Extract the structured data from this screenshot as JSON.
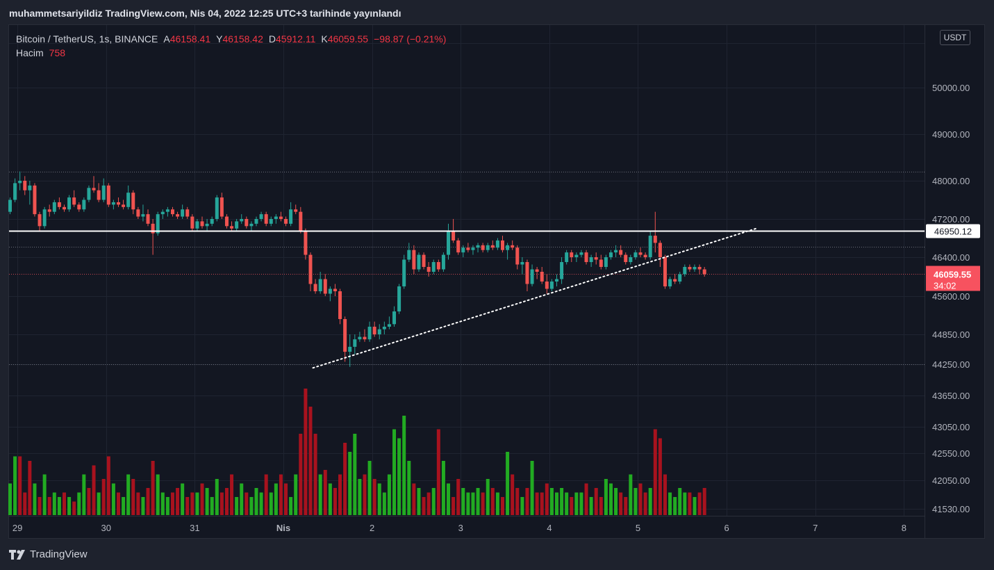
{
  "header": {
    "title": "muhammetsariyildiz TradingView.com, Nis 04, 2022 12:25 UTC+3 tarihinde yayınlandı"
  },
  "legend": {
    "symbol": "Bitcoin / TetherUS, 1s, BINANCE",
    "open_label": "A",
    "open": "46158.41",
    "high_label": "Y",
    "high": "46158.42",
    "low_label": "D",
    "low": "45912.11",
    "close_label": "K",
    "close": "46059.55",
    "change": "−98.87 (−0.21%)",
    "volume_label": "Hacim",
    "volume": "758"
  },
  "currency_button": "USDT",
  "branding": {
    "logo_text": "TradingView"
  },
  "chart_data": {
    "type": "candlestick",
    "price_axis_ticks": [
      {
        "value": 50000,
        "label": "50000.00"
      },
      {
        "value": 49000,
        "label": "49000.00"
      },
      {
        "value": 48000,
        "label": "48000.00"
      },
      {
        "value": 47200,
        "label": "47200.00"
      },
      {
        "value": 46400,
        "label": "46400.00"
      },
      {
        "value": 45600,
        "label": "45600.00"
      },
      {
        "value": 44850,
        "label": "44850.00"
      },
      {
        "value": 44250,
        "label": "44250.00"
      },
      {
        "value": 43650,
        "label": "43650.00"
      },
      {
        "value": 43050,
        "label": "43050.00"
      },
      {
        "value": 42550,
        "label": "42550.00"
      },
      {
        "value": 42050,
        "label": "42050.00"
      },
      {
        "value": 41530,
        "label": "41530.00"
      }
    ],
    "time_axis_ticks": [
      {
        "label": "29",
        "bar": 1.5
      },
      {
        "label": "30",
        "bar": 19.5
      },
      {
        "label": "31",
        "bar": 37.5
      },
      {
        "label": "Nis",
        "bar": 55.5,
        "bold": true
      },
      {
        "label": "2",
        "bar": 73.5
      },
      {
        "label": "3",
        "bar": 91.5
      },
      {
        "label": "4",
        "bar": 109.5
      },
      {
        "label": "5",
        "bar": 127.5
      },
      {
        "label": "6",
        "bar": 145.5
      },
      {
        "label": "7",
        "bar": 163.5
      },
      {
        "label": "8",
        "bar": 181.5
      }
    ],
    "horizontal_lines": [
      {
        "price": 46950.12,
        "label": "46950.12",
        "style": "solid",
        "color": "#ffffff"
      }
    ],
    "dotted_levels": [
      48200,
      46620,
      44250
    ],
    "current_price": {
      "price": 46059.55,
      "label": "46059.55",
      "countdown": "34:02",
      "color": "#f7525f"
    },
    "trendline": {
      "from": {
        "bar": 61.5,
        "price": 44180
      },
      "to": {
        "bar": 151.5,
        "price": 47000
      },
      "style": "dotted",
      "color": "#ffffff"
    },
    "colors": {
      "up": "#26a69a",
      "down": "#ef5350",
      "vol_up": "#22ab22",
      "vol_down": "#a8121e"
    },
    "candles_ohlc": [
      [
        47350,
        47650,
        47300,
        47600
      ],
      [
        47600,
        48050,
        47550,
        47950
      ],
      [
        47950,
        48200,
        47800,
        48000
      ],
      [
        48000,
        48100,
        47700,
        47800
      ],
      [
        47800,
        48000,
        47500,
        47900
      ],
      [
        47900,
        47950,
        47250,
        47300
      ],
      [
        47300,
        47350,
        46950,
        47050
      ],
      [
        47050,
        47450,
        47000,
        47400
      ],
      [
        47400,
        47500,
        47250,
        47350
      ],
      [
        47350,
        47600,
        47300,
        47550
      ],
      [
        47550,
        47650,
        47400,
        47450
      ],
      [
        47450,
        47500,
        47350,
        47400
      ],
      [
        47400,
        47700,
        47350,
        47650
      ],
      [
        47650,
        47800,
        47450,
        47500
      ],
      [
        47500,
        47550,
        47350,
        47400
      ],
      [
        47400,
        47650,
        47350,
        47600
      ],
      [
        47600,
        47900,
        47550,
        47850
      ],
      [
        47850,
        48100,
        47750,
        47800
      ],
      [
        47800,
        47950,
        47550,
        47600
      ],
      [
        47600,
        48050,
        47550,
        47900
      ],
      [
        47900,
        47950,
        47450,
        47500
      ],
      [
        47500,
        47600,
        47400,
        47550
      ],
      [
        47550,
        47650,
        47450,
        47500
      ],
      [
        47500,
        47600,
        47400,
        47450
      ],
      [
        47450,
        47900,
        47400,
        47750
      ],
      [
        47750,
        47800,
        47300,
        47400
      ],
      [
        47400,
        47450,
        47200,
        47250
      ],
      [
        47250,
        47500,
        47150,
        47300
      ],
      [
        47300,
        47400,
        47050,
        47100
      ],
      [
        47100,
        47200,
        46450,
        46900
      ],
      [
        46900,
        47350,
        46850,
        47300
      ],
      [
        47300,
        47400,
        47200,
        47350
      ],
      [
        47350,
        47450,
        47250,
        47400
      ],
      [
        47400,
        47450,
        47250,
        47300
      ],
      [
        47300,
        47350,
        47200,
        47250
      ],
      [
        47250,
        47500,
        47200,
        47400
      ],
      [
        47400,
        47450,
        47200,
        47250
      ],
      [
        47250,
        47300,
        46950,
        47000
      ],
      [
        47000,
        47200,
        46950,
        47150
      ],
      [
        47150,
        47250,
        47000,
        47050
      ],
      [
        47050,
        47200,
        46950,
        47100
      ],
      [
        47100,
        47250,
        47050,
        47200
      ],
      [
        47200,
        47700,
        47150,
        47650
      ],
      [
        47650,
        47750,
        47200,
        47250
      ],
      [
        47250,
        47300,
        47000,
        47050
      ],
      [
        47050,
        47150,
        46950,
        47000
      ],
      [
        47000,
        47200,
        46950,
        47150
      ],
      [
        47150,
        47300,
        47100,
        47200
      ],
      [
        47200,
        47250,
        47000,
        47050
      ],
      [
        47050,
        47150,
        46950,
        47100
      ],
      [
        47100,
        47250,
        47050,
        47200
      ],
      [
        47200,
        47350,
        47150,
        47300
      ],
      [
        47300,
        47350,
        47050,
        47100
      ],
      [
        47100,
        47250,
        47050,
        47200
      ],
      [
        47200,
        47300,
        47100,
        47250
      ],
      [
        47250,
        47350,
        47150,
        47200
      ],
      [
        47200,
        47250,
        47050,
        47100
      ],
      [
        47100,
        47550,
        47050,
        47400
      ],
      [
        47400,
        47500,
        47300,
        47350
      ],
      [
        47350,
        47450,
        46900,
        46950
      ],
      [
        46950,
        47000,
        46350,
        46450
      ],
      [
        46450,
        46500,
        45700,
        45850
      ],
      [
        45850,
        45950,
        45650,
        45700
      ],
      [
        45700,
        46100,
        45650,
        45950
      ],
      [
        45950,
        46050,
        45600,
        45650
      ],
      [
        45650,
        45800,
        45500,
        45750
      ],
      [
        45750,
        45850,
        45600,
        45700
      ],
      [
        45700,
        45750,
        45050,
        45150
      ],
      [
        45150,
        45200,
        44300,
        44500
      ],
      [
        44500,
        44850,
        44200,
        44600
      ],
      [
        44600,
        44850,
        44450,
        44750
      ],
      [
        44750,
        44900,
        44700,
        44800
      ],
      [
        44800,
        44950,
        44700,
        44750
      ],
      [
        44750,
        45100,
        44700,
        45000
      ],
      [
        45000,
        45100,
        44800,
        44850
      ],
      [
        44850,
        45050,
        44750,
        44950
      ],
      [
        44950,
        45100,
        44850,
        45000
      ],
      [
        45000,
        45200,
        44950,
        45050
      ],
      [
        45050,
        45400,
        45000,
        45300
      ],
      [
        45300,
        45850,
        45250,
        45800
      ],
      [
        45800,
        46450,
        45750,
        46350
      ],
      [
        46350,
        46700,
        46300,
        46550
      ],
      [
        46550,
        46650,
        46050,
        46150
      ],
      [
        46150,
        46500,
        46100,
        46450
      ],
      [
        46450,
        46500,
        46150,
        46200
      ],
      [
        46200,
        46300,
        46000,
        46100
      ],
      [
        46100,
        46350,
        46050,
        46300
      ],
      [
        46300,
        46350,
        46100,
        46150
      ],
      [
        46150,
        46500,
        46100,
        46450
      ],
      [
        46450,
        47100,
        46350,
        46950
      ],
      [
        46950,
        47200,
        46700,
        46750
      ],
      [
        46750,
        46800,
        46450,
        46500
      ],
      [
        46500,
        46650,
        46400,
        46600
      ],
      [
        46600,
        46700,
        46500,
        46550
      ],
      [
        46550,
        46650,
        46450,
        46600
      ],
      [
        46600,
        46700,
        46500,
        46650
      ],
      [
        46650,
        46700,
        46500,
        46550
      ],
      [
        46550,
        46700,
        46500,
        46650
      ],
      [
        46650,
        46750,
        46550,
        46600
      ],
      [
        46600,
        46800,
        46550,
        46750
      ],
      [
        46750,
        46850,
        46500,
        46550
      ],
      [
        46550,
        46700,
        46350,
        46650
      ],
      [
        46650,
        46750,
        46550,
        46600
      ],
      [
        46600,
        46650,
        46150,
        46250
      ],
      [
        46250,
        46400,
        46050,
        46300
      ],
      [
        46300,
        46350,
        45700,
        45850
      ],
      [
        45850,
        46250,
        45800,
        46150
      ],
      [
        46150,
        46200,
        45950,
        46100
      ],
      [
        46100,
        46200,
        45850,
        45900
      ],
      [
        45900,
        46050,
        45650,
        45750
      ],
      [
        45750,
        45950,
        45700,
        45900
      ],
      [
        45900,
        46050,
        45800,
        45950
      ],
      [
        45950,
        46400,
        45850,
        46300
      ],
      [
        46300,
        46550,
        46250,
        46500
      ],
      [
        46500,
        46550,
        46300,
        46400
      ],
      [
        46400,
        46500,
        46300,
        46450
      ],
      [
        46450,
        46550,
        46400,
        46500
      ],
      [
        46500,
        46550,
        46250,
        46300
      ],
      [
        46300,
        46450,
        46200,
        46400
      ],
      [
        46400,
        46500,
        46250,
        46350
      ],
      [
        46350,
        46450,
        46150,
        46200
      ],
      [
        46200,
        46450,
        46150,
        46400
      ],
      [
        46400,
        46550,
        46350,
        46500
      ],
      [
        46500,
        46650,
        46400,
        46550
      ],
      [
        46550,
        46650,
        46400,
        46450
      ],
      [
        46450,
        46500,
        46250,
        46300
      ],
      [
        46300,
        46450,
        46250,
        46400
      ],
      [
        46400,
        46550,
        46350,
        46500
      ],
      [
        46500,
        46600,
        46400,
        46450
      ],
      [
        46450,
        46500,
        46350,
        46400
      ],
      [
        46400,
        46950,
        46350,
        46850
      ],
      [
        46850,
        47350,
        46500,
        46700
      ],
      [
        46700,
        46750,
        46200,
        46400
      ],
      [
        46400,
        46450,
        45750,
        45800
      ],
      [
        45800,
        46000,
        45750,
        45950
      ],
      [
        45950,
        46050,
        45850,
        45900
      ],
      [
        45900,
        46100,
        45850,
        46050
      ],
      [
        46050,
        46250,
        46000,
        46200
      ],
      [
        46200,
        46250,
        46100,
        46150
      ],
      [
        46150,
        46250,
        46100,
        46200
      ],
      [
        46200,
        46250,
        46050,
        46150
      ],
      [
        46150,
        46200,
        46000,
        46050
      ]
    ],
    "volumes": [
      35,
      65,
      65,
      25,
      60,
      35,
      20,
      45,
      20,
      25,
      20,
      25,
      20,
      15,
      25,
      45,
      30,
      55,
      25,
      40,
      65,
      35,
      25,
      20,
      45,
      40,
      25,
      20,
      30,
      60,
      45,
      25,
      20,
      25,
      30,
      35,
      20,
      25,
      25,
      35,
      30,
      20,
      40,
      25,
      30,
      45,
      20,
      35,
      25,
      20,
      30,
      25,
      45,
      25,
      35,
      45,
      35,
      20,
      45,
      90,
      140,
      120,
      90,
      45,
      50,
      35,
      30,
      45,
      80,
      70,
      90,
      40,
      45,
      60,
      40,
      35,
      25,
      45,
      95,
      85,
      110,
      60,
      35,
      30,
      20,
      25,
      30,
      95,
      60,
      35,
      20,
      40,
      30,
      25,
      25,
      30,
      25,
      40,
      30,
      25,
      20,
      70,
      45,
      30,
      20,
      30,
      60,
      25,
      25,
      35,
      30,
      25,
      30,
      25,
      20,
      25,
      25,
      35,
      20,
      30,
      20,
      40,
      35,
      30,
      25,
      20,
      45,
      30,
      35,
      25,
      30,
      95,
      85,
      45,
      25,
      20,
      30,
      25,
      25,
      20,
      25,
      30
    ],
    "volume_up_flags": [
      1,
      1,
      0,
      0,
      0,
      1,
      0,
      1,
      0,
      1,
      1,
      0,
      1,
      0,
      1,
      1,
      0,
      0,
      1,
      0,
      0,
      1,
      0,
      1,
      1,
      0,
      0,
      1,
      0,
      0,
      1,
      1,
      1,
      0,
      0,
      1,
      0,
      0,
      1,
      0,
      1,
      1,
      1,
      0,
      0,
      0,
      1,
      1,
      0,
      1,
      1,
      1,
      0,
      1,
      1,
      0,
      0,
      1,
      1,
      0,
      0,
      0,
      0,
      1,
      0,
      1,
      0,
      0,
      0,
      1,
      1,
      1,
      0,
      1,
      0,
      1,
      1,
      1,
      1,
      1,
      1,
      1,
      0,
      1,
      0,
      0,
      1,
      0,
      1,
      1,
      0,
      0,
      1,
      1,
      1,
      1,
      0,
      1,
      0,
      1,
      0,
      1,
      0,
      0,
      1,
      0,
      1,
      0,
      0,
      0,
      1,
      1,
      1,
      1,
      0,
      1,
      1,
      0,
      1,
      0,
      0,
      1,
      1,
      1,
      0,
      0,
      1,
      1,
      0,
      0,
      1,
      0,
      0,
      0,
      1,
      1,
      1,
      1,
      0,
      1,
      0,
      0
    ]
  }
}
